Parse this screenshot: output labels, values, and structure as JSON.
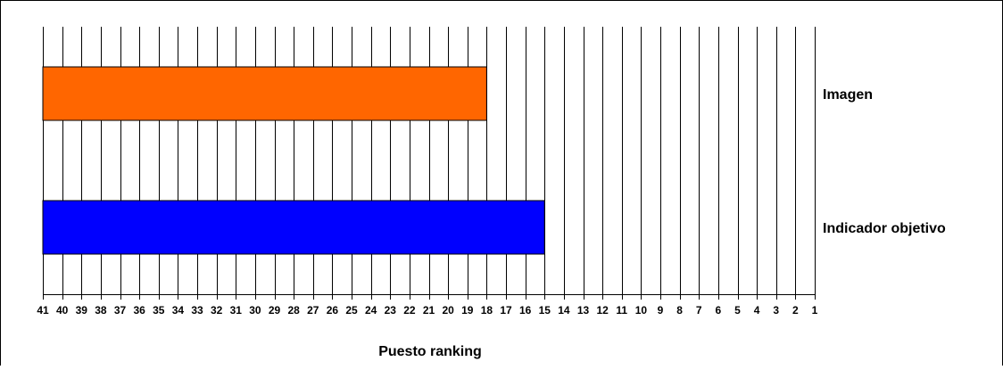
{
  "chart_data": {
    "type": "bar",
    "orientation": "horizontal",
    "x_axis": {
      "label": "Puesto ranking",
      "range": [
        41,
        1
      ],
      "reversed": true,
      "ticks": [
        "41",
        "40",
        "39",
        "38",
        "37",
        "36",
        "35",
        "34",
        "33",
        "32",
        "31",
        "30",
        "29",
        "28",
        "27",
        "26",
        "25",
        "24",
        "23",
        "22",
        "21",
        "20",
        "19",
        "18",
        "17",
        "16",
        "15",
        "14",
        "13",
        "12",
        "11",
        "10",
        "9",
        "8",
        "7",
        "6",
        "5",
        "4",
        "3",
        "2",
        "1"
      ]
    },
    "categories": [
      "Imagen",
      "Indicador objetivo"
    ],
    "values": [
      18,
      15
    ],
    "colors": [
      "#ff6600",
      "#0000ff"
    ],
    "grid": "vertical lines",
    "title": ""
  }
}
